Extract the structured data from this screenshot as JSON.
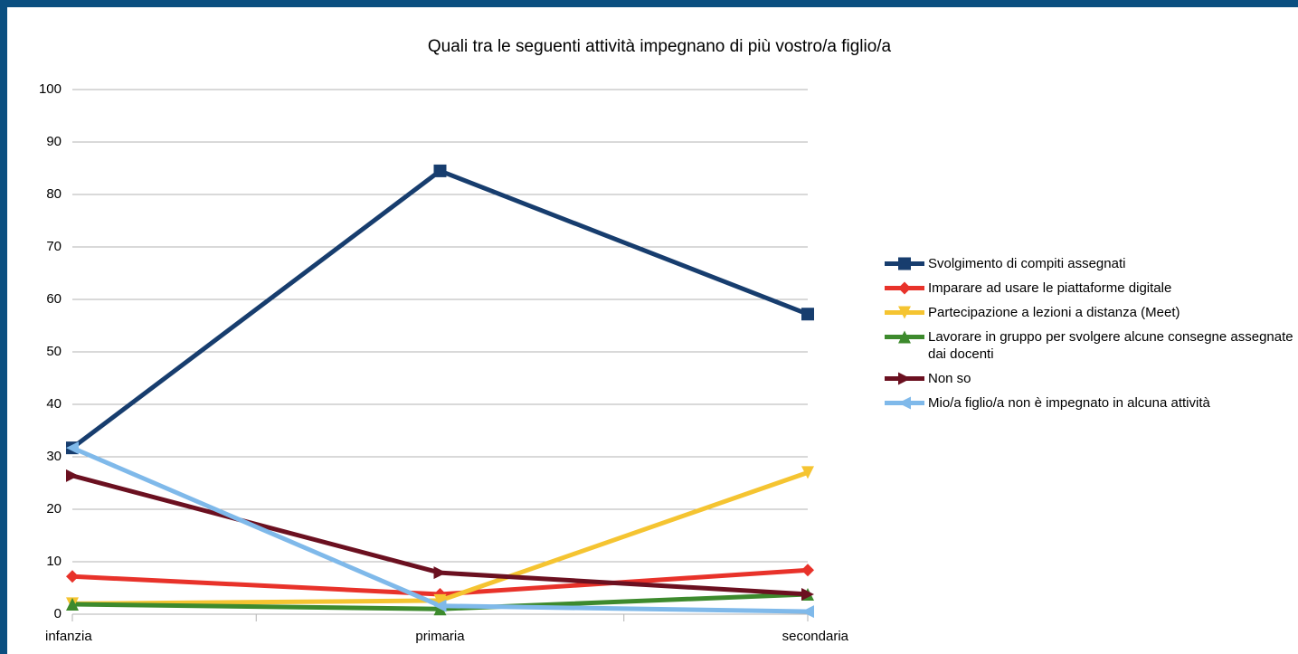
{
  "chart_data": {
    "type": "line",
    "title": "Quali tra le seguenti attività impegnano di più vostro/a figlio/a",
    "categories": [
      "infanzia",
      "primaria",
      "secondaria"
    ],
    "series": [
      {
        "name": "Svolgimento di compiti assegnati",
        "color": "#173d6e",
        "marker": "square",
        "values": [
          31.7,
          84.5,
          57.2
        ]
      },
      {
        "name": "Imparare ad usare le piattaforme digitale",
        "color": "#e8322a",
        "marker": "diamond",
        "values": [
          7.2,
          3.8,
          8.4
        ]
      },
      {
        "name": "Partecipazione a lezioni a distanza (Meet)",
        "color": "#f5c431",
        "marker": "triangle-down",
        "values": [
          2,
          2.6,
          27
        ]
      },
      {
        "name": "Lavorare in gruppo per svolgere alcune consegne assegnate dai docenti",
        "color": "#3d8a2d",
        "marker": "triangle-up",
        "values": [
          1.9,
          1,
          3.8
        ]
      },
      {
        "name": "Non so",
        "color": "#6b1020",
        "marker": "triangle-right",
        "values": [
          26.4,
          7.9,
          3.8
        ]
      },
      {
        "name": "Mio/a figlio/a non è impegnato in alcuna attività",
        "color": "#7fb9ea",
        "marker": "triangle-left",
        "values": [
          31.7,
          1.6,
          0.5
        ]
      }
    ],
    "ylim": [
      0,
      100
    ],
    "yticks": [
      0,
      10,
      20,
      30,
      40,
      50,
      60,
      70,
      80,
      90,
      100
    ],
    "grid": true,
    "legend": "right"
  }
}
